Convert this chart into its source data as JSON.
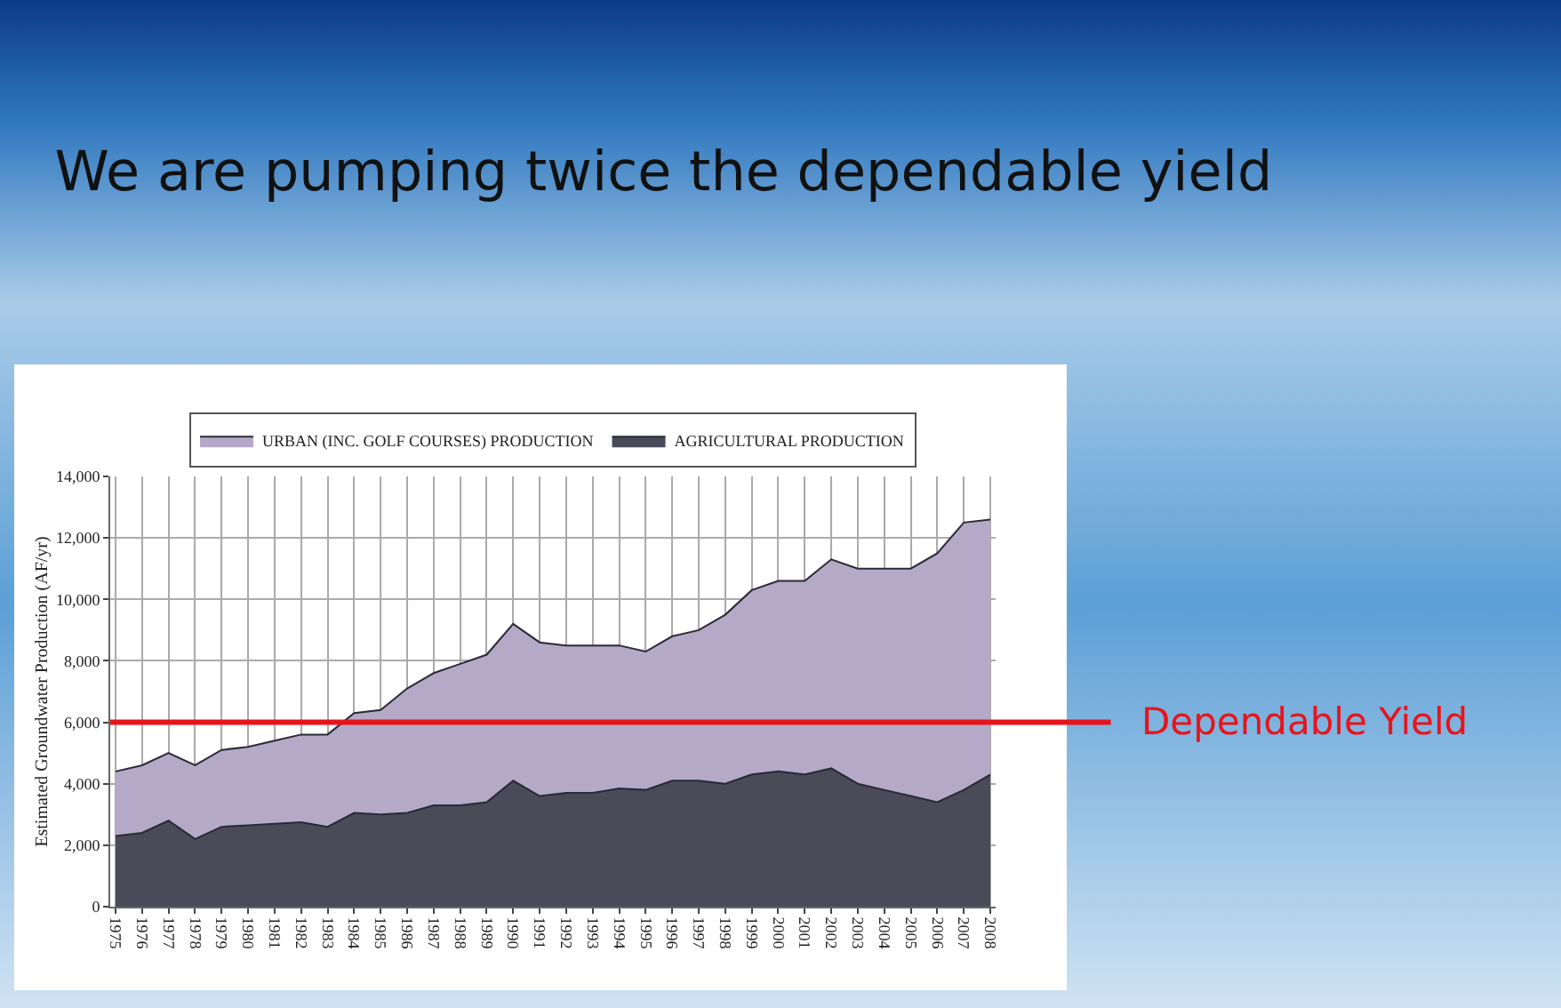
{
  "chart_data": {
    "type": "area",
    "stacked": true,
    "title": "We are pumping twice the dependable yield",
    "ylabel": "Estimated Groundwater Production (AF/yr)",
    "categories": [
      "1975",
      "1976",
      "1977",
      "1978",
      "1979",
      "1980",
      "1981",
      "1982",
      "1983",
      "1984",
      "1985",
      "1986",
      "1987",
      "1988",
      "1989",
      "1990",
      "1991",
      "1992",
      "1993",
      "1994",
      "1995",
      "1996",
      "1997",
      "1998",
      "1999",
      "2000",
      "2001",
      "2002",
      "2003",
      "2004",
      "2005",
      "2006",
      "2007",
      "2008"
    ],
    "series": [
      {
        "name": "AGRICULTURAL PRODUCTION",
        "color": "#4a4a58",
        "values": [
          2300,
          2400,
          2800,
          2200,
          2600,
          2650,
          2700,
          2750,
          2600,
          3050,
          3000,
          3050,
          3300,
          3300,
          3400,
          4100,
          3600,
          3700,
          3700,
          3850,
          3800,
          4100,
          4100,
          4000,
          4300,
          4400,
          4300,
          4500,
          4000,
          3800,
          3600,
          3400,
          3800,
          4300
        ]
      },
      {
        "name": "URBAN (INC. GOLF COURSES) PRODUCTION",
        "color": "#b4aac8",
        "values": [
          2100,
          2200,
          2200,
          2400,
          2500,
          2550,
          2700,
          2850,
          3000,
          3250,
          3400,
          4050,
          4300,
          4600,
          4800,
          5100,
          5000,
          4800,
          4800,
          4650,
          4500,
          4700,
          4900,
          5500,
          6000,
          6200,
          6300,
          6800,
          7000,
          7200,
          7400,
          8100,
          8700,
          8300
        ]
      }
    ],
    "ylim": [
      0,
      14000
    ],
    "yticks": [
      {
        "value": 0,
        "label": "0"
      },
      {
        "value": 2000,
        "label": "2,000"
      },
      {
        "value": 4000,
        "label": "4,000"
      },
      {
        "value": 6000,
        "label": "6,000"
      },
      {
        "value": 8000,
        "label": "8,000"
      },
      {
        "value": 10000,
        "label": "10,000"
      },
      {
        "value": 12000,
        "label": "12,000"
      },
      {
        "value": 14000,
        "label": "14,000"
      }
    ],
    "grid": true,
    "legend": "top",
    "ref_lines": [
      {
        "axis": "y",
        "value": 6000,
        "label": "Dependable Yield",
        "color": "#e8141b"
      }
    ]
  }
}
